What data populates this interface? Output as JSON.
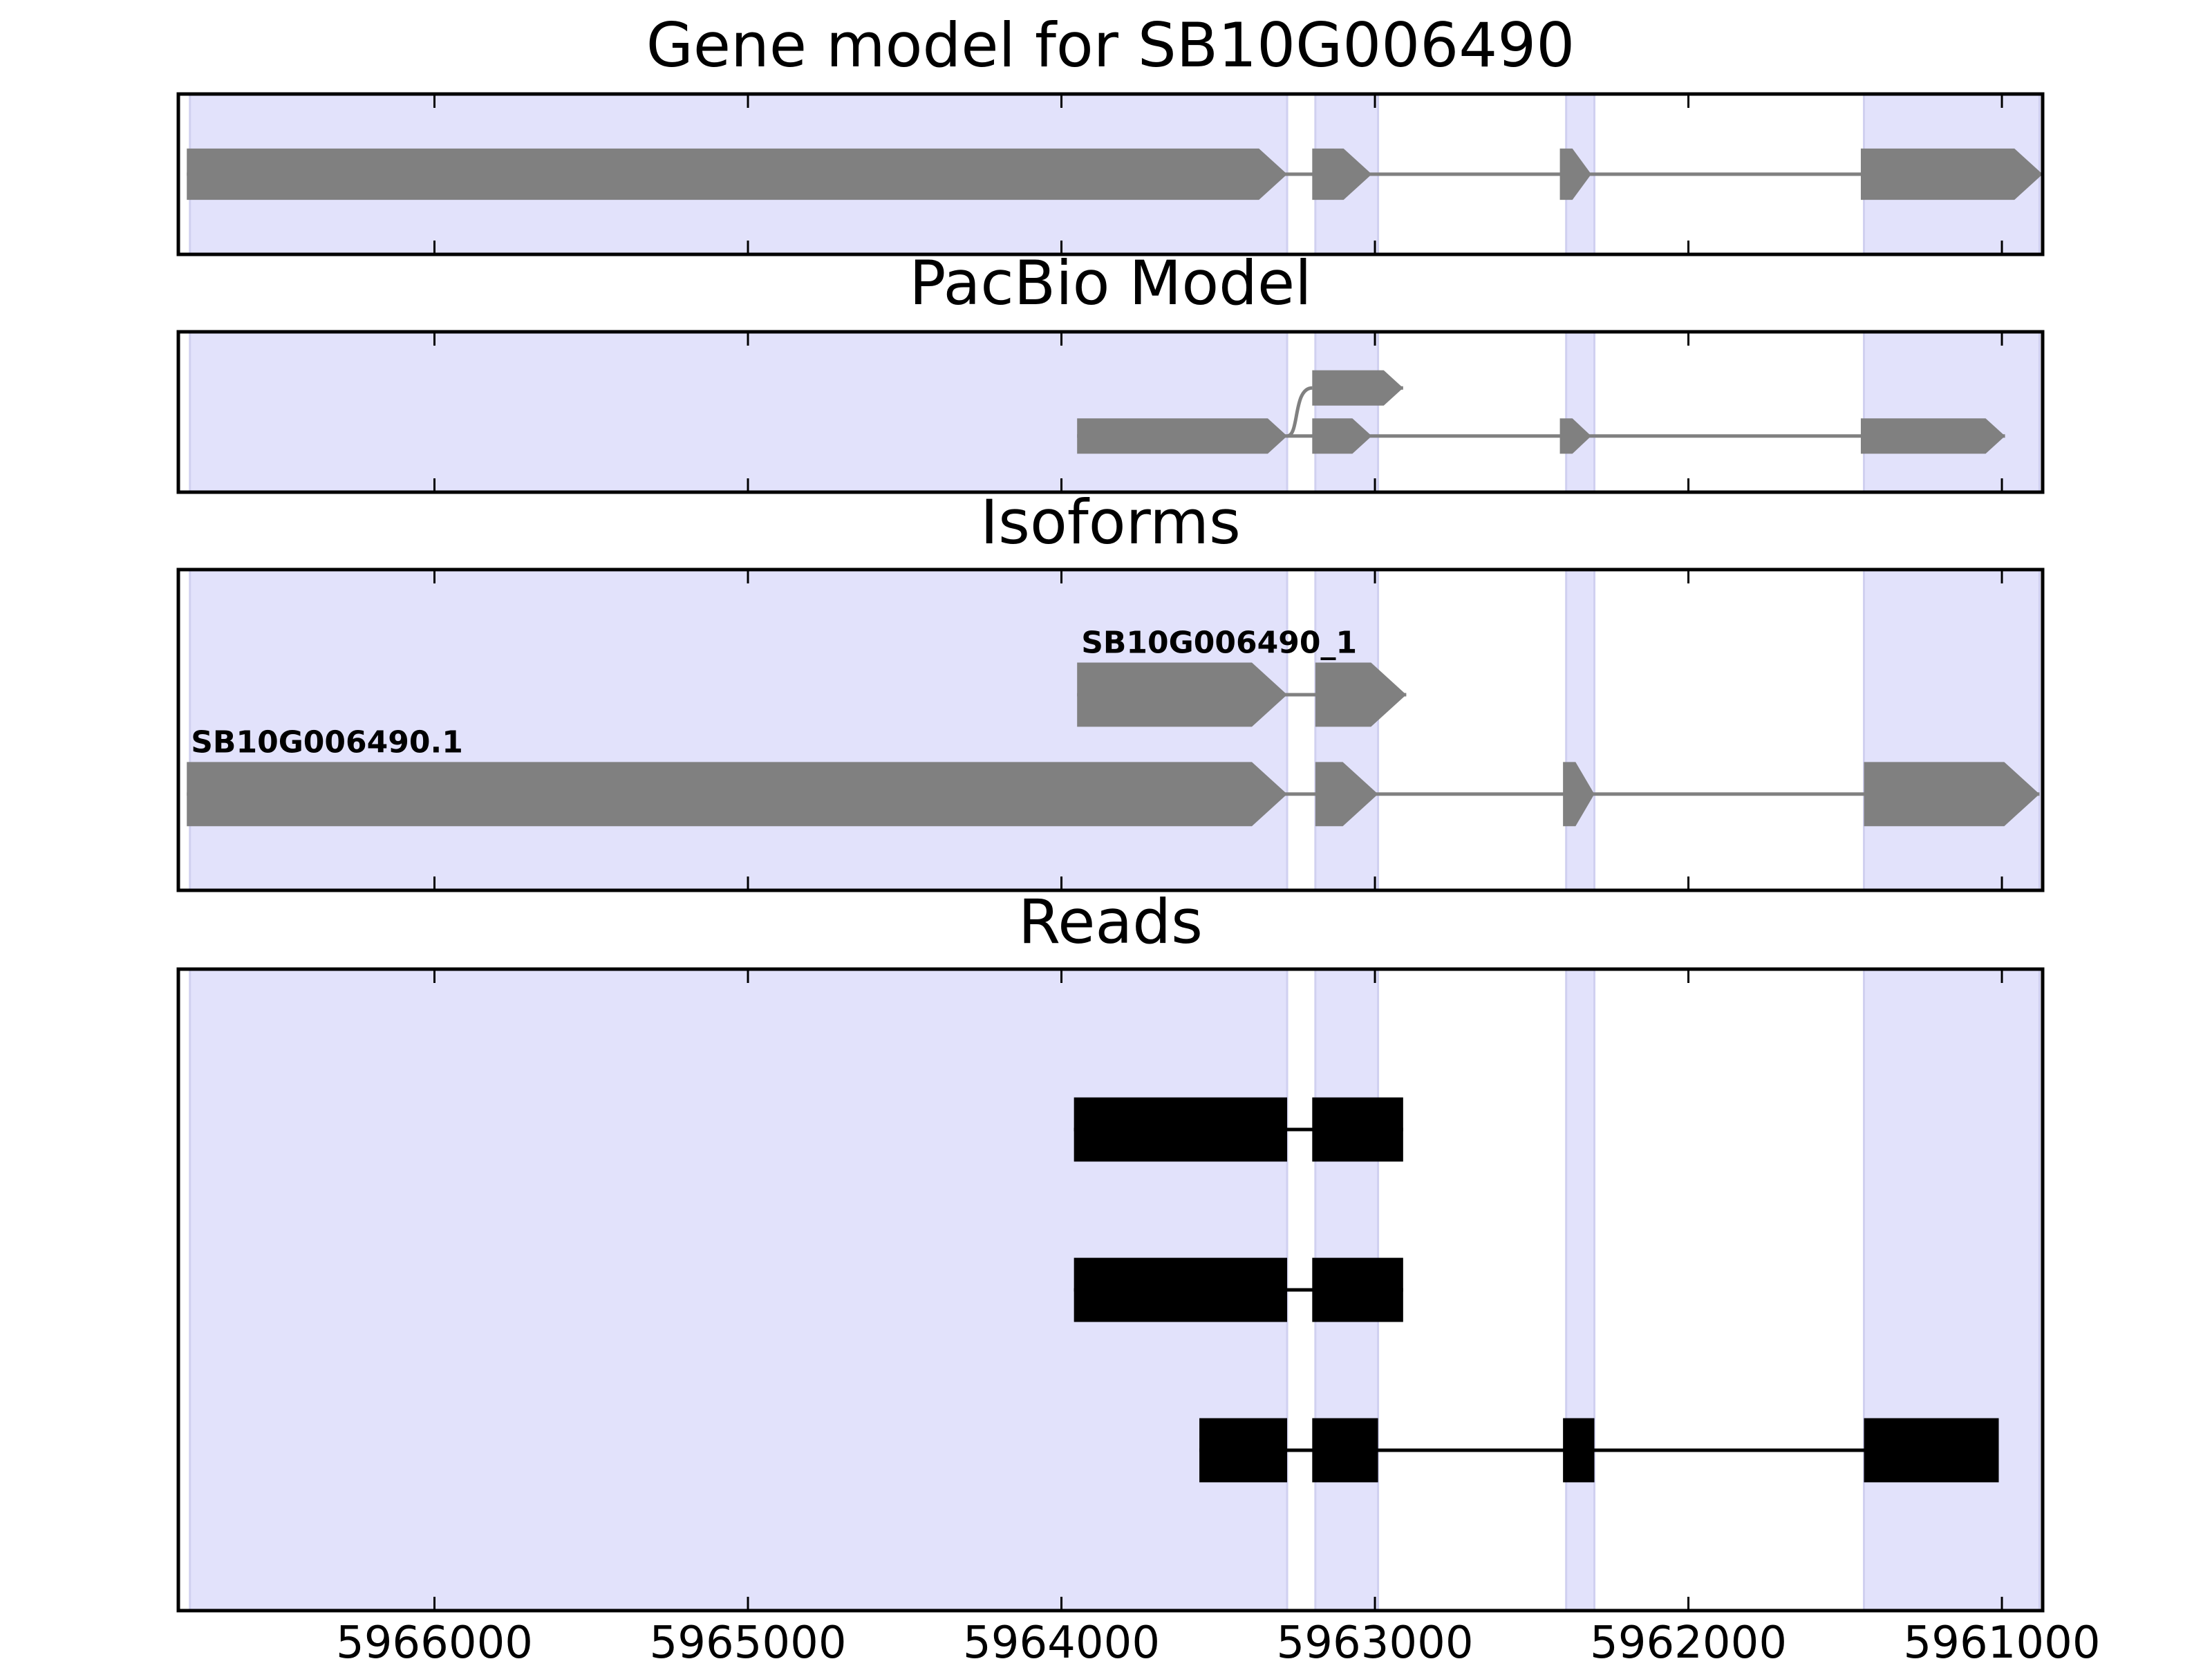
{
  "chart_data": {
    "type": "gene-track",
    "x_reversed": true,
    "xlim": [
      5966817,
      5960870
    ],
    "x_ticks": [
      5966000,
      5965000,
      5964000,
      5963000,
      5962000,
      5961000
    ],
    "x_tick_labels": [
      "5966000",
      "5965000",
      "5964000",
      "5963000",
      "5962000",
      "5961000"
    ],
    "colors": {
      "shade": "#e2e2fb",
      "feature": "#808080",
      "read": "#000000",
      "frame": "#000000"
    },
    "shaded_regions": [
      [
        5966780,
        5963280
      ],
      [
        5963190,
        5962990
      ],
      [
        5962390,
        5962300
      ],
      [
        5961440,
        5960880
      ]
    ],
    "panels": [
      {
        "title": "Gene model for SB10G006490",
        "ylim": [
          0,
          1
        ],
        "transcripts": [
          {
            "label": "",
            "y": 0.5,
            "thickness": 0.32,
            "exons": [
              [
                5966790,
                5963280
              ],
              [
                5963200,
                5963010
              ],
              [
                5962410,
                5962310
              ],
              [
                5961450,
                5960870
              ]
            ],
            "links": [],
            "direction": "right"
          }
        ]
      },
      {
        "title": "PacBio Model",
        "ylim": [
          0,
          1
        ],
        "transcripts": [
          {
            "label": "",
            "y": 0.35,
            "thickness": 0.22,
            "exons": [
              [
                5963950,
                5963280
              ],
              [
                5963200,
                5963010
              ],
              [
                5962410,
                5962310
              ],
              [
                5961450,
                5960990
              ]
            ],
            "links": [],
            "direction": "right"
          },
          {
            "label": "",
            "y": 0.65,
            "thickness": 0.22,
            "exons": [
              [
                5963200,
                5962910
              ]
            ],
            "links": [
              [
                5963280,
                0.35,
                5963200,
                0.65
              ]
            ],
            "direction": "right"
          }
        ]
      },
      {
        "title": "Isoforms",
        "ylim": [
          0,
          1
        ],
        "transcripts": [
          {
            "label": "SB10G006490.1",
            "y": 0.3,
            "thickness": 0.2,
            "exons": [
              [
                5966790,
                5963280
              ],
              [
                5963190,
                5962990
              ],
              [
                5962400,
                5962300
              ],
              [
                5961440,
                5960880
              ]
            ],
            "links": [],
            "direction": "right"
          },
          {
            "label": "SB10G006490_1",
            "y": 0.61,
            "thickness": 0.2,
            "exons": [
              [
                5963950,
                5963280
              ],
              [
                5963190,
                5962900
              ]
            ],
            "links": [],
            "direction": "right"
          }
        ]
      },
      {
        "title": "Reads",
        "ylim": [
          0,
          4
        ],
        "reads": [
          {
            "y": 3,
            "thickness": 0.4,
            "blocks": [
              [
                5963960,
                5963280
              ],
              [
                5963200,
                5962910
              ]
            ]
          },
          {
            "y": 2,
            "thickness": 0.4,
            "blocks": [
              [
                5963960,
                5963280
              ],
              [
                5963200,
                5962910
              ]
            ]
          },
          {
            "y": 1,
            "thickness": 0.4,
            "blocks": [
              [
                5963560,
                5963280
              ],
              [
                5963200,
                5962990
              ],
              [
                5962400,
                5962300
              ],
              [
                5961440,
                5961010
              ]
            ]
          }
        ]
      }
    ]
  }
}
